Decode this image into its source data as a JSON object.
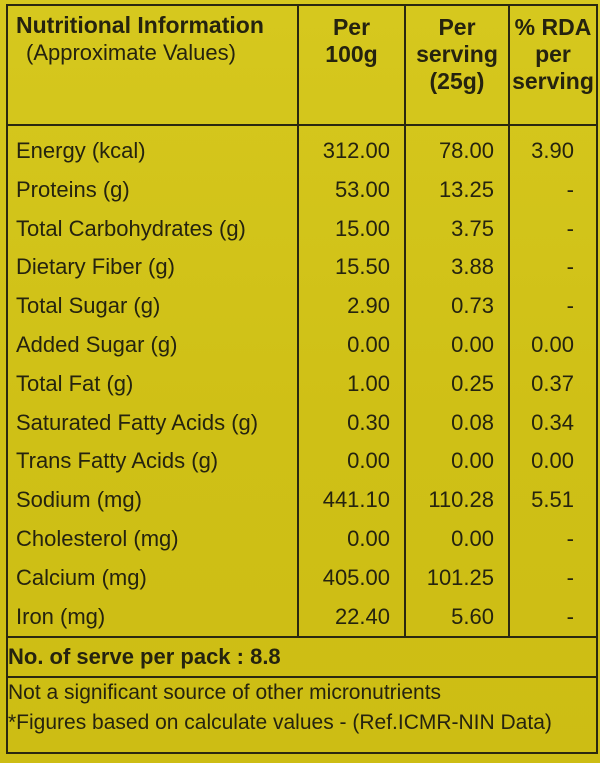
{
  "header": {
    "title": "Nutritional Information",
    "subtitle": "(Approximate Values)",
    "col_per100": [
      "Per",
      "100g"
    ],
    "col_serving": [
      "Per",
      "serving",
      "(25g)"
    ],
    "col_rda": [
      "% RDA",
      "per",
      "serving"
    ]
  },
  "rows": [
    {
      "name": "Energy (kcal)",
      "per100": "312.00",
      "serving": "78.00",
      "rda": "3.90"
    },
    {
      "name": "Proteins (g)",
      "per100": "53.00",
      "serving": "13.25",
      "rda": "-"
    },
    {
      "name": "Total Carbohydrates (g)",
      "per100": "15.00",
      "serving": "3.75",
      "rda": "-"
    },
    {
      "name": "Dietary Fiber (g)",
      "per100": "15.50",
      "serving": "3.88",
      "rda": "-"
    },
    {
      "name": "Total Sugar (g)",
      "per100": "2.90",
      "serving": "0.73",
      "rda": "-"
    },
    {
      "name": "Added Sugar (g)",
      "per100": "0.00",
      "serving": "0.00",
      "rda": "0.00"
    },
    {
      "name": "Total Fat (g)",
      "per100": "1.00",
      "serving": "0.25",
      "rda": "0.37"
    },
    {
      "name": "Saturated Fatty Acids (g)",
      "per100": "0.30",
      "serving": "0.08",
      "rda": "0.34"
    },
    {
      "name": "Trans Fatty Acids (g)",
      "per100": "0.00",
      "serving": "0.00",
      "rda": "0.00"
    },
    {
      "name": "Sodium (mg)",
      "per100": "441.10",
      "serving": "110.28",
      "rda": "5.51"
    },
    {
      "name": "Cholesterol (mg)",
      "per100": "0.00",
      "serving": "0.00",
      "rda": "-"
    },
    {
      "name": "Calcium (mg)",
      "per100": "405.00",
      "serving": "101.25",
      "rda": "-"
    },
    {
      "name": "Iron (mg)",
      "per100": "22.40",
      "serving": "5.60",
      "rda": "-"
    }
  ],
  "footer": {
    "serves": "No. of serve per pack : 8.8",
    "note1": "Not a significant source of other micronutrients",
    "note2": "*Figures based on calculate values - (Ref.ICMR-NIN Data)"
  }
}
